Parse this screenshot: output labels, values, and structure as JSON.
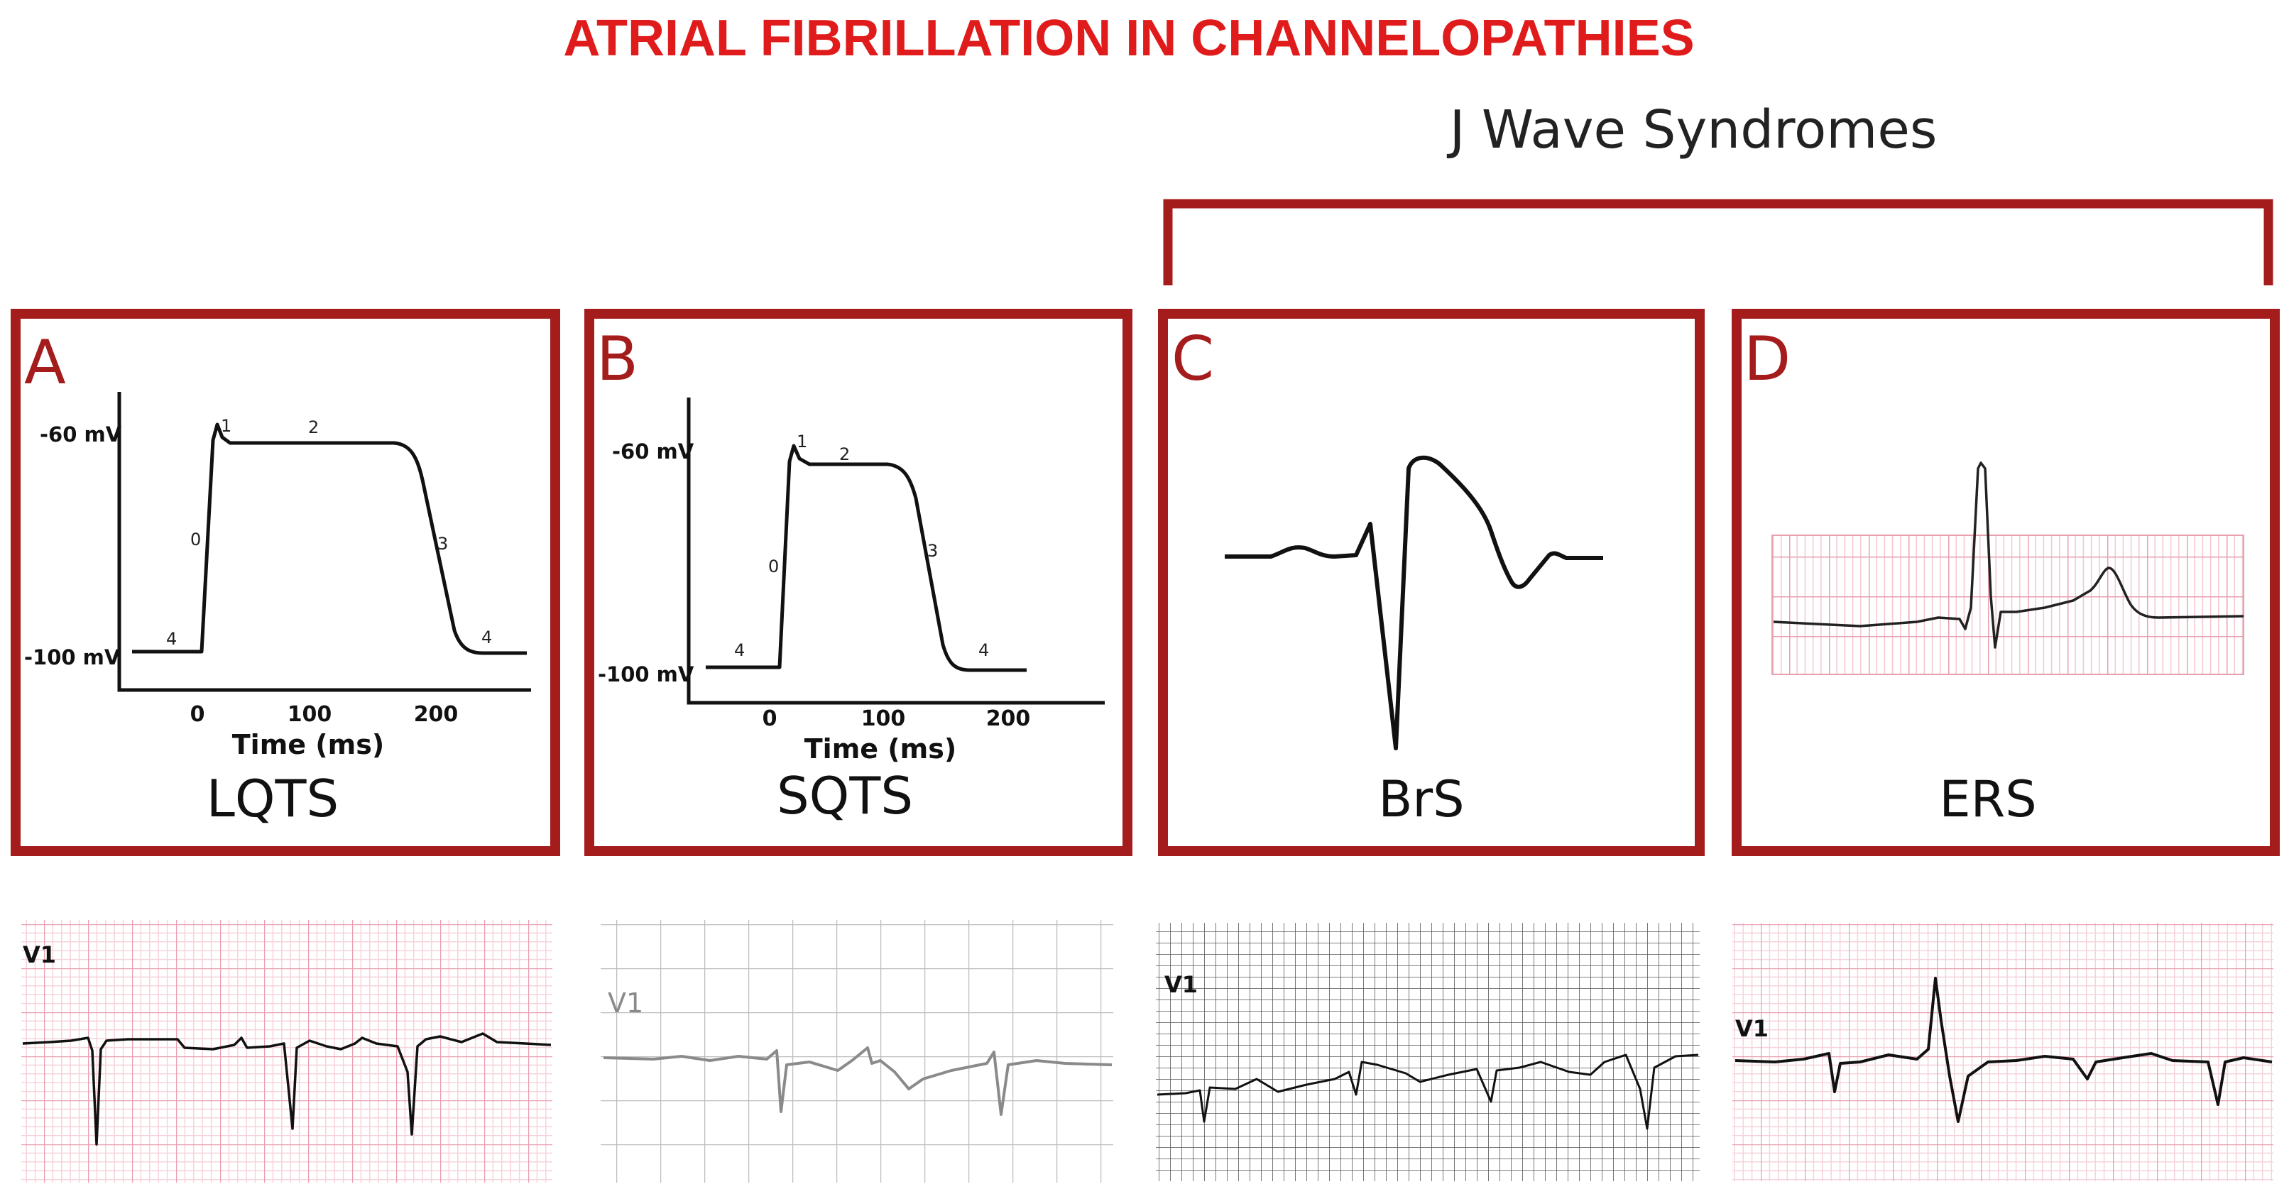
{
  "title": "ATRIAL FIBRILLATION IN CHANNELOPATHIES",
  "group_label": "J Wave Syndromes",
  "colors": {
    "accent": "#a51c1c",
    "title": "#e01b1b",
    "ecg_grid_pink": "#f0b8c4",
    "ecg_grid_gray": "#b8b8b8"
  },
  "panels": [
    {
      "letter": "A",
      "name": "LQTS",
      "y_top": "-60 mV",
      "y_bottom": "-100 mV",
      "x_ticks": [
        "0",
        "100",
        "200"
      ],
      "xlabel": "Time (ms)",
      "phases": [
        "0",
        "1",
        "2",
        "3",
        "4",
        "4"
      ]
    },
    {
      "letter": "B",
      "name": "SQTS",
      "y_top": "-60 mV",
      "y_bottom": "-100 mV",
      "x_ticks": [
        "0",
        "100",
        "200"
      ],
      "xlabel": "Time (ms)",
      "phases": [
        "0",
        "1",
        "2",
        "3",
        "4",
        "4"
      ]
    },
    {
      "letter": "C",
      "name": "BrS"
    },
    {
      "letter": "D",
      "name": "ERS"
    }
  ],
  "ecg_strips": [
    {
      "lead": "V1",
      "grid": "pink"
    },
    {
      "lead": "V1",
      "grid": "gray"
    },
    {
      "lead": "V1",
      "grid": "dense"
    },
    {
      "lead": "V1",
      "grid": "pink"
    }
  ]
}
